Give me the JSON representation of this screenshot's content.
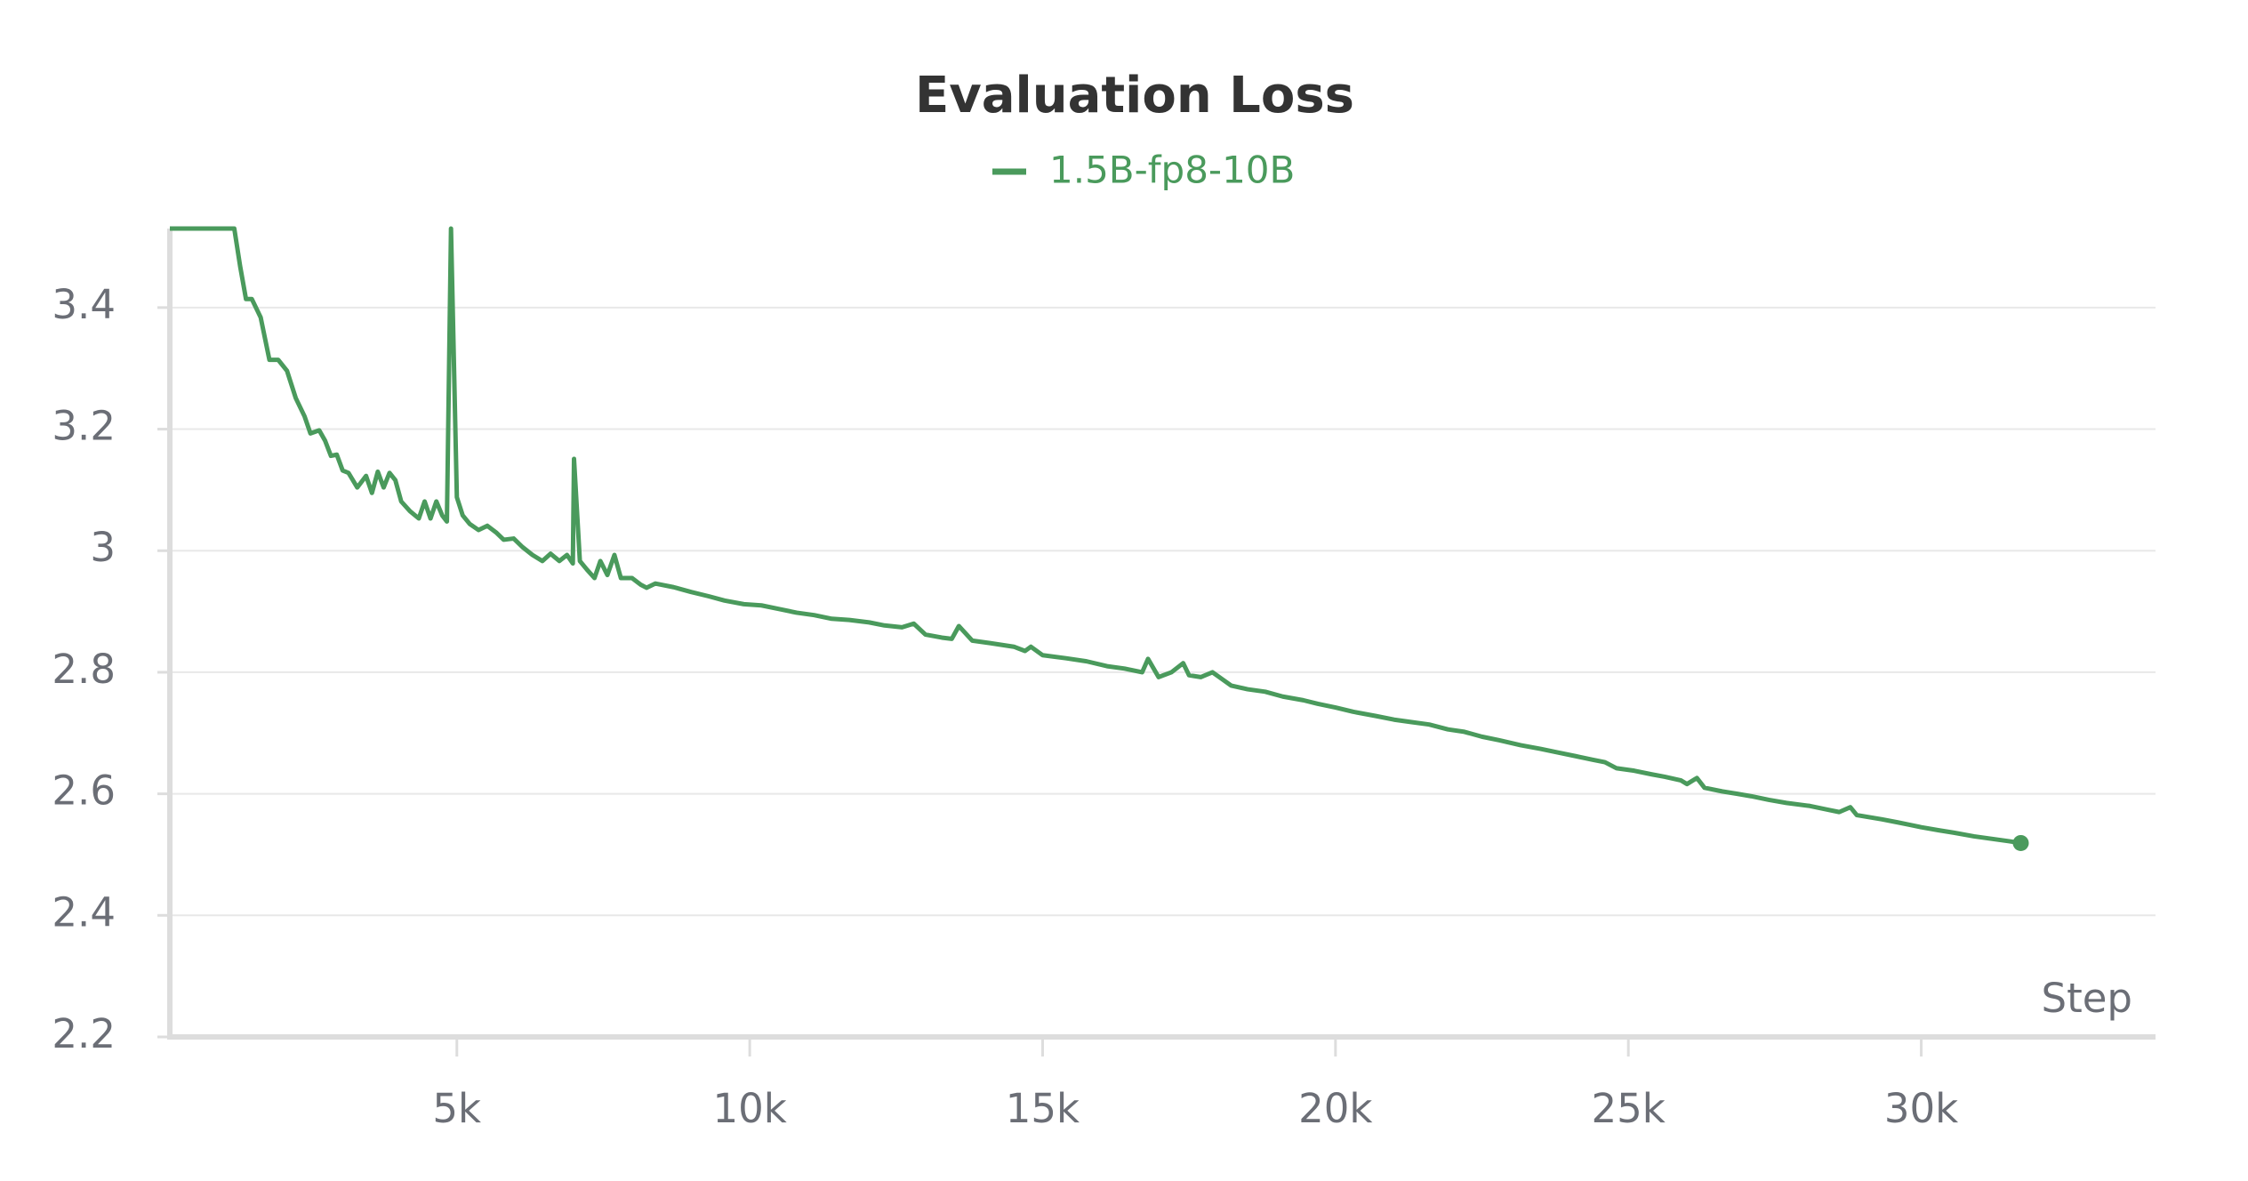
{
  "chart_data": {
    "type": "line",
    "title": "Evaluation Loss",
    "xlabel": "Step",
    "x": [
      100,
      1200,
      1300,
      1400,
      1500,
      1650,
      1800,
      1950,
      2100,
      2250,
      2400,
      2500,
      2650,
      2750,
      2850,
      2950,
      3050,
      3150,
      3300,
      3450,
      3550,
      3650,
      3750,
      3850,
      3950,
      4050,
      4200,
      4350,
      4450,
      4550,
      4650,
      4750,
      4830,
      4900,
      5000,
      5100,
      5220,
      5370,
      5520,
      5670,
      5800,
      5970,
      6120,
      6290,
      6460,
      6600,
      6750,
      6880,
      6980,
      7000,
      7100,
      7220,
      7350,
      7450,
      7570,
      7690,
      7800,
      7990,
      8140,
      8240,
      8390,
      8700,
      9000,
      9300,
      9570,
      9900,
      10200,
      10500,
      10800,
      11100,
      11400,
      11700,
      12040,
      12300,
      12600,
      12800,
      13000,
      13280,
      13450,
      13570,
      13800,
      14100,
      14510,
      14700,
      14800,
      15000,
      15400,
      15750,
      16100,
      16400,
      16700,
      16800,
      16980,
      17200,
      17400,
      17500,
      17700,
      17900,
      18220,
      18500,
      18800,
      19100,
      19450,
      19700,
      20000,
      20300,
      20690,
      21000,
      21300,
      21600,
      21920,
      22200,
      22500,
      22800,
      23160,
      23500,
      23800,
      24100,
      24390,
      24600,
      24800,
      25100,
      25400,
      25620,
      25900,
      26000,
      26170,
      26300,
      26600,
      26860,
      27100,
      27400,
      27700,
      28100,
      28400,
      28600,
      28790,
      28900,
      29330,
      29600,
      29800,
      30000,
      30300,
      30560,
      30900,
      31200,
      31500,
      31700
    ],
    "series": [
      {
        "name": "1.5B-fp8-10B",
        "color": "#4a9a5c",
        "values": [
          3.53,
          3.53,
          3.468,
          3.414,
          3.414,
          3.384,
          3.314,
          3.314,
          3.296,
          3.251,
          3.221,
          3.193,
          3.198,
          3.181,
          3.156,
          3.158,
          3.132,
          3.128,
          3.104,
          3.123,
          3.095,
          3.13,
          3.104,
          3.128,
          3.116,
          3.081,
          3.065,
          3.053,
          3.081,
          3.053,
          3.081,
          3.058,
          3.048,
          3.53,
          3.088,
          3.058,
          3.044,
          3.034,
          3.041,
          3.03,
          3.018,
          3.02,
          3.006,
          2.993,
          2.983,
          2.995,
          2.983,
          2.993,
          2.979,
          3.151,
          2.983,
          2.969,
          2.955,
          2.983,
          2.96,
          2.993,
          2.955,
          2.955,
          2.944,
          2.939,
          2.946,
          2.94,
          2.932,
          2.925,
          2.918,
          2.912,
          2.91,
          2.904,
          2.898,
          2.894,
          2.888,
          2.886,
          2.882,
          2.877,
          2.874,
          2.88,
          2.862,
          2.857,
          2.855,
          2.876,
          2.852,
          2.848,
          2.842,
          2.835,
          2.842,
          2.828,
          2.823,
          2.818,
          2.81,
          2.806,
          2.8,
          2.822,
          2.792,
          2.8,
          2.815,
          2.795,
          2.792,
          2.8,
          2.778,
          2.772,
          2.768,
          2.76,
          2.754,
          2.748,
          2.742,
          2.735,
          2.728,
          2.722,
          2.718,
          2.714,
          2.706,
          2.702,
          2.694,
          2.688,
          2.68,
          2.674,
          2.668,
          2.662,
          2.656,
          2.652,
          2.642,
          2.638,
          2.632,
          2.628,
          2.622,
          2.616,
          2.626,
          2.61,
          2.604,
          2.6,
          2.596,
          2.59,
          2.585,
          2.58,
          2.574,
          2.57,
          2.578,
          2.565,
          2.558,
          2.553,
          2.549,
          2.545,
          2.54,
          2.536,
          2.53,
          2.526,
          2.522,
          2.519
        ]
      }
    ],
    "xlim": [
      100,
      34000
    ],
    "ylim": [
      2.2,
      3.53
    ],
    "xticks": [
      {
        "value": 5000,
        "label": "5k"
      },
      {
        "value": 10000,
        "label": "10k"
      },
      {
        "value": 15000,
        "label": "15k"
      },
      {
        "value": 20000,
        "label": "20k"
      },
      {
        "value": 25000,
        "label": "25k"
      },
      {
        "value": 30000,
        "label": "30k"
      }
    ],
    "yticks": [
      2.2,
      2.4,
      2.6,
      2.8,
      3,
      3.2,
      3.4
    ],
    "grid": true
  }
}
